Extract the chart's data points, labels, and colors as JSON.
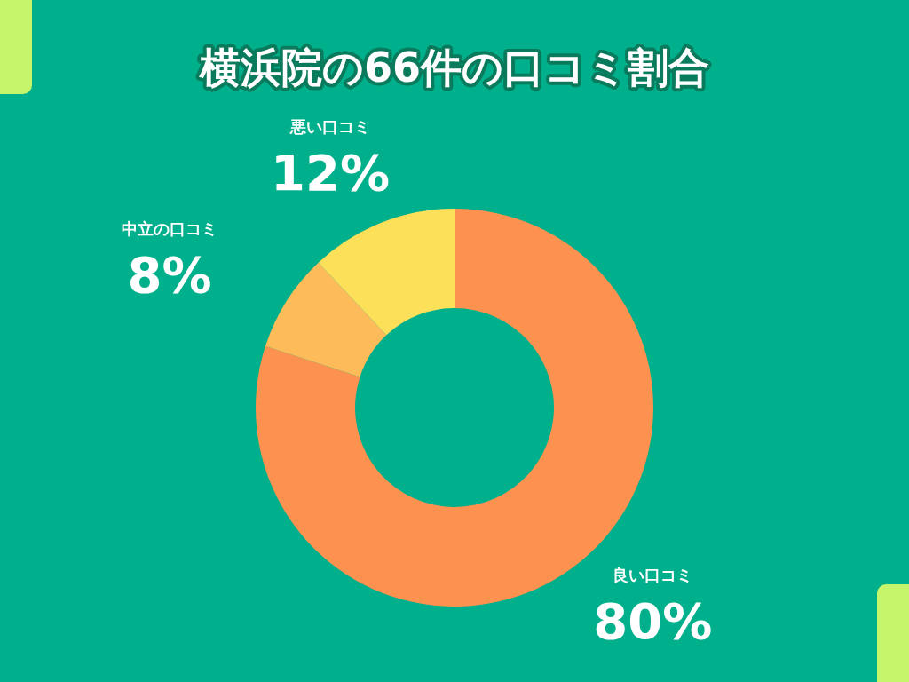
{
  "chart_data": {
    "type": "donut",
    "title": "横浜院の66件の口コミ割合",
    "categories": [
      "良い口コミ",
      "中立の口コミ",
      "悪い口コミ"
    ],
    "values": [
      80,
      8,
      12
    ],
    "colors": [
      "#fd914f",
      "#fdbb5a",
      "#fde05a"
    ],
    "value_labels": [
      "80%",
      "8%",
      "12%"
    ]
  }
}
